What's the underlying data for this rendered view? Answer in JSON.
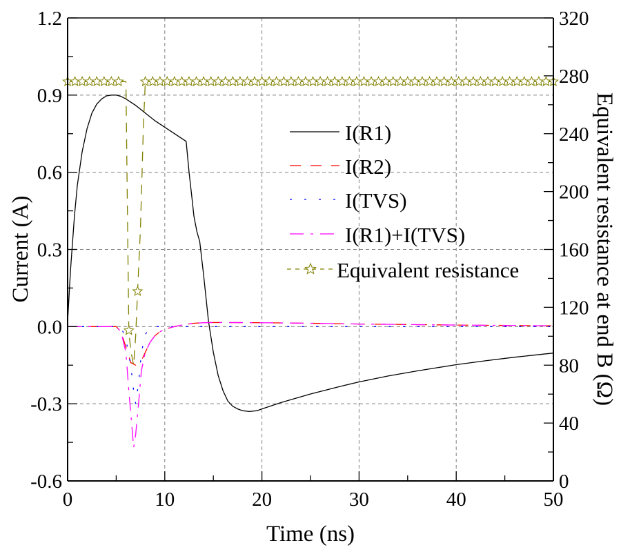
{
  "chart_data": {
    "type": "line",
    "title": "",
    "xlabel": "Time (ns)",
    "ylabel": "Current (A)",
    "y2label": "Equivalent resistance at end B (Ω)",
    "xlim": [
      0,
      50
    ],
    "ylim": [
      -0.6,
      1.2
    ],
    "y2lim": [
      0,
      320
    ],
    "grid": true,
    "legend_position": "center-right",
    "x_ticks": [
      "0",
      "10",
      "20",
      "30",
      "40",
      "50"
    ],
    "x_tick_values": [
      0,
      10,
      20,
      30,
      40,
      50
    ],
    "y_ticks": [
      "-0.6",
      "-0.3",
      "0.0",
      "0.3",
      "0.6",
      "0.9",
      "1.2"
    ],
    "y_tick_values": [
      -0.6,
      -0.3,
      0.0,
      0.3,
      0.6,
      0.9,
      1.2
    ],
    "y2_ticks": [
      "0",
      "40",
      "80",
      "120",
      "160",
      "200",
      "240",
      "280",
      "320"
    ],
    "y2_tick_values": [
      0,
      40,
      80,
      120,
      160,
      200,
      240,
      280,
      320
    ],
    "series": [
      {
        "name": "I(R1)",
        "axis": "left",
        "color": "#000000",
        "style": "solid",
        "x": [
          0,
          0.3,
          0.7,
          1.0,
          1.5,
          2.0,
          2.5,
          3.0,
          3.5,
          4.0,
          4.5,
          5.0,
          5.5,
          6.0,
          7.0,
          8.0,
          9.0,
          10.0,
          11.0,
          12.2,
          12.5,
          12.8,
          13.0,
          13.3,
          13.6,
          14.0,
          14.5,
          15.0,
          15.5,
          16.0,
          16.5,
          17.0,
          17.5,
          18.0,
          18.7,
          19.5,
          20.0,
          22.0,
          25.0,
          28.0,
          30.0,
          33.0,
          36.0,
          40.0,
          43.0,
          46.0,
          50.0
        ],
        "y": [
          0.02,
          0.22,
          0.43,
          0.55,
          0.68,
          0.77,
          0.83,
          0.865,
          0.885,
          0.897,
          0.9,
          0.9,
          0.895,
          0.885,
          0.86,
          0.83,
          0.8,
          0.775,
          0.75,
          0.72,
          0.6,
          0.5,
          0.43,
          0.37,
          0.33,
          0.2,
          0.02,
          -0.1,
          -0.19,
          -0.25,
          -0.29,
          -0.31,
          -0.32,
          -0.327,
          -0.33,
          -0.327,
          -0.32,
          -0.295,
          -0.262,
          -0.233,
          -0.215,
          -0.192,
          -0.172,
          -0.148,
          -0.133,
          -0.119,
          -0.103
        ]
      },
      {
        "name": "I(R2)",
        "axis": "left",
        "color": "#ff0000",
        "style": "dash",
        "x": [
          0,
          4.0,
          5.0,
          5.5,
          6.0,
          6.5,
          7.0,
          7.5,
          8.0,
          8.5,
          9.0,
          9.5,
          10.0,
          11.0,
          12.0,
          13.0,
          14.0,
          15.0,
          20.0,
          25.0,
          30.0,
          40.0,
          50.0
        ],
        "y": [
          0,
          0,
          0,
          -0.02,
          -0.08,
          -0.14,
          -0.15,
          -0.14,
          -0.1,
          -0.06,
          -0.035,
          -0.02,
          -0.01,
          0.0,
          0.008,
          0.013,
          0.015,
          0.016,
          0.015,
          0.013,
          0.01,
          0.006,
          0.003
        ]
      },
      {
        "name": "I(TVS)",
        "axis": "left",
        "color": "#0000ff",
        "style": "dot",
        "x": [
          0,
          4.0,
          5.5,
          6.0,
          6.5,
          6.8,
          7.0,
          7.3,
          7.6,
          8.0,
          8.5,
          9.0,
          10.0,
          20.0,
          30.0,
          40.0,
          50.0
        ],
        "y": [
          0,
          0,
          0,
          -0.05,
          -0.15,
          -0.25,
          -0.3,
          -0.22,
          -0.1,
          -0.03,
          -0.005,
          0,
          0,
          0,
          0,
          0,
          0
        ]
      },
      {
        "name": "I(R1)+I(TVS)",
        "axis": "left",
        "color": "#ff00ff",
        "style": "dashdot",
        "x": [
          0,
          4.0,
          5.0,
          5.5,
          6.0,
          6.3,
          6.6,
          6.8,
          7.0,
          7.3,
          7.6,
          8.0,
          8.5,
          9.0,
          9.5,
          10.0,
          11.0,
          12.0,
          13.0,
          14.0,
          15.0,
          20.0,
          25.0,
          30.0,
          40.0,
          50.0
        ],
        "y": [
          0,
          0,
          0,
          -0.02,
          -0.1,
          -0.25,
          -0.38,
          -0.47,
          -0.42,
          -0.3,
          -0.17,
          -0.1,
          -0.06,
          -0.035,
          -0.02,
          -0.01,
          0.0,
          0.008,
          0.013,
          0.015,
          0.016,
          0.015,
          0.013,
          0.01,
          0.006,
          0.003
        ]
      },
      {
        "name": "Equivalent resistance",
        "axis": "right",
        "color": "#808000",
        "style": "dash-star",
        "x": [
          0,
          0.75,
          1.5,
          2.25,
          3.0,
          3.75,
          4.5,
          5.25,
          6.0,
          6.3,
          6.5,
          6.8,
          7.0,
          7.2,
          7.5,
          7.8,
          8.0,
          8.75,
          9.5,
          10.25,
          11.0,
          11.75,
          12.5,
          13.25,
          14.0,
          14.75,
          15.5,
          16.25,
          17.0,
          17.75,
          18.5,
          19.25,
          20.0,
          20.75,
          21.5,
          22.25,
          23.0,
          23.75,
          24.5,
          25.25,
          26.0,
          26.75,
          27.5,
          28.25,
          29.0,
          29.75,
          30.5,
          31.25,
          32.0,
          32.75,
          33.5,
          34.25,
          35.0,
          35.75,
          36.5,
          37.25,
          38.0,
          38.75,
          39.5,
          40.25,
          41.0,
          41.75,
          42.5,
          43.25,
          44.0,
          44.75,
          45.5,
          46.25,
          47.0,
          47.75,
          48.5,
          49.25,
          50.0
        ],
        "y": [
          276,
          276,
          276,
          276,
          276,
          276,
          276,
          276,
          276,
          104,
          90,
          80,
          100,
          131,
          175,
          245,
          276,
          276,
          276,
          276,
          276,
          276,
          276,
          276,
          276,
          276,
          276,
          276,
          276,
          276,
          276,
          276,
          276,
          276,
          276,
          276,
          276,
          276,
          276,
          276,
          276,
          276,
          276,
          276,
          276,
          276,
          276,
          276,
          276,
          276,
          276,
          276,
          276,
          276,
          276,
          276,
          276,
          276,
          276,
          276,
          276,
          276,
          276,
          276,
          276,
          276,
          276,
          276,
          276,
          276,
          276,
          276,
          276
        ],
        "marker_x": [
          0,
          0.75,
          1.5,
          2.25,
          3.0,
          3.75,
          4.5,
          5.25,
          6.3,
          7.2,
          8.0,
          8.75,
          9.5,
          10.25,
          11.0,
          11.75,
          12.5,
          13.25,
          14.0,
          14.75,
          15.5,
          16.25,
          17.0,
          17.75,
          18.5,
          19.25,
          20.0,
          20.75,
          21.5,
          22.25,
          23.0,
          23.75,
          24.5,
          25.25,
          26.0,
          26.75,
          27.5,
          28.25,
          29.0,
          29.75,
          30.5,
          31.25,
          32.0,
          32.75,
          33.5,
          34.25,
          35.0,
          35.75,
          36.5,
          37.25,
          38.0,
          38.75,
          39.5,
          40.25,
          41.0,
          41.75,
          42.5,
          43.25,
          44.0,
          44.75,
          45.5,
          46.25,
          47.0,
          47.75,
          48.5,
          49.25,
          50.0
        ],
        "marker_y": [
          276,
          276,
          276,
          276,
          276,
          276,
          276,
          276,
          104,
          131,
          276,
          276,
          276,
          276,
          276,
          276,
          276,
          276,
          276,
          276,
          276,
          276,
          276,
          276,
          276,
          276,
          276,
          276,
          276,
          276,
          276,
          276,
          276,
          276,
          276,
          276,
          276,
          276,
          276,
          276,
          276,
          276,
          276,
          276,
          276,
          276,
          276,
          276,
          276,
          276,
          276,
          276,
          276,
          276,
          276,
          276,
          276,
          276,
          276,
          276,
          276,
          276,
          276,
          276,
          276,
          276,
          276
        ]
      }
    ]
  }
}
